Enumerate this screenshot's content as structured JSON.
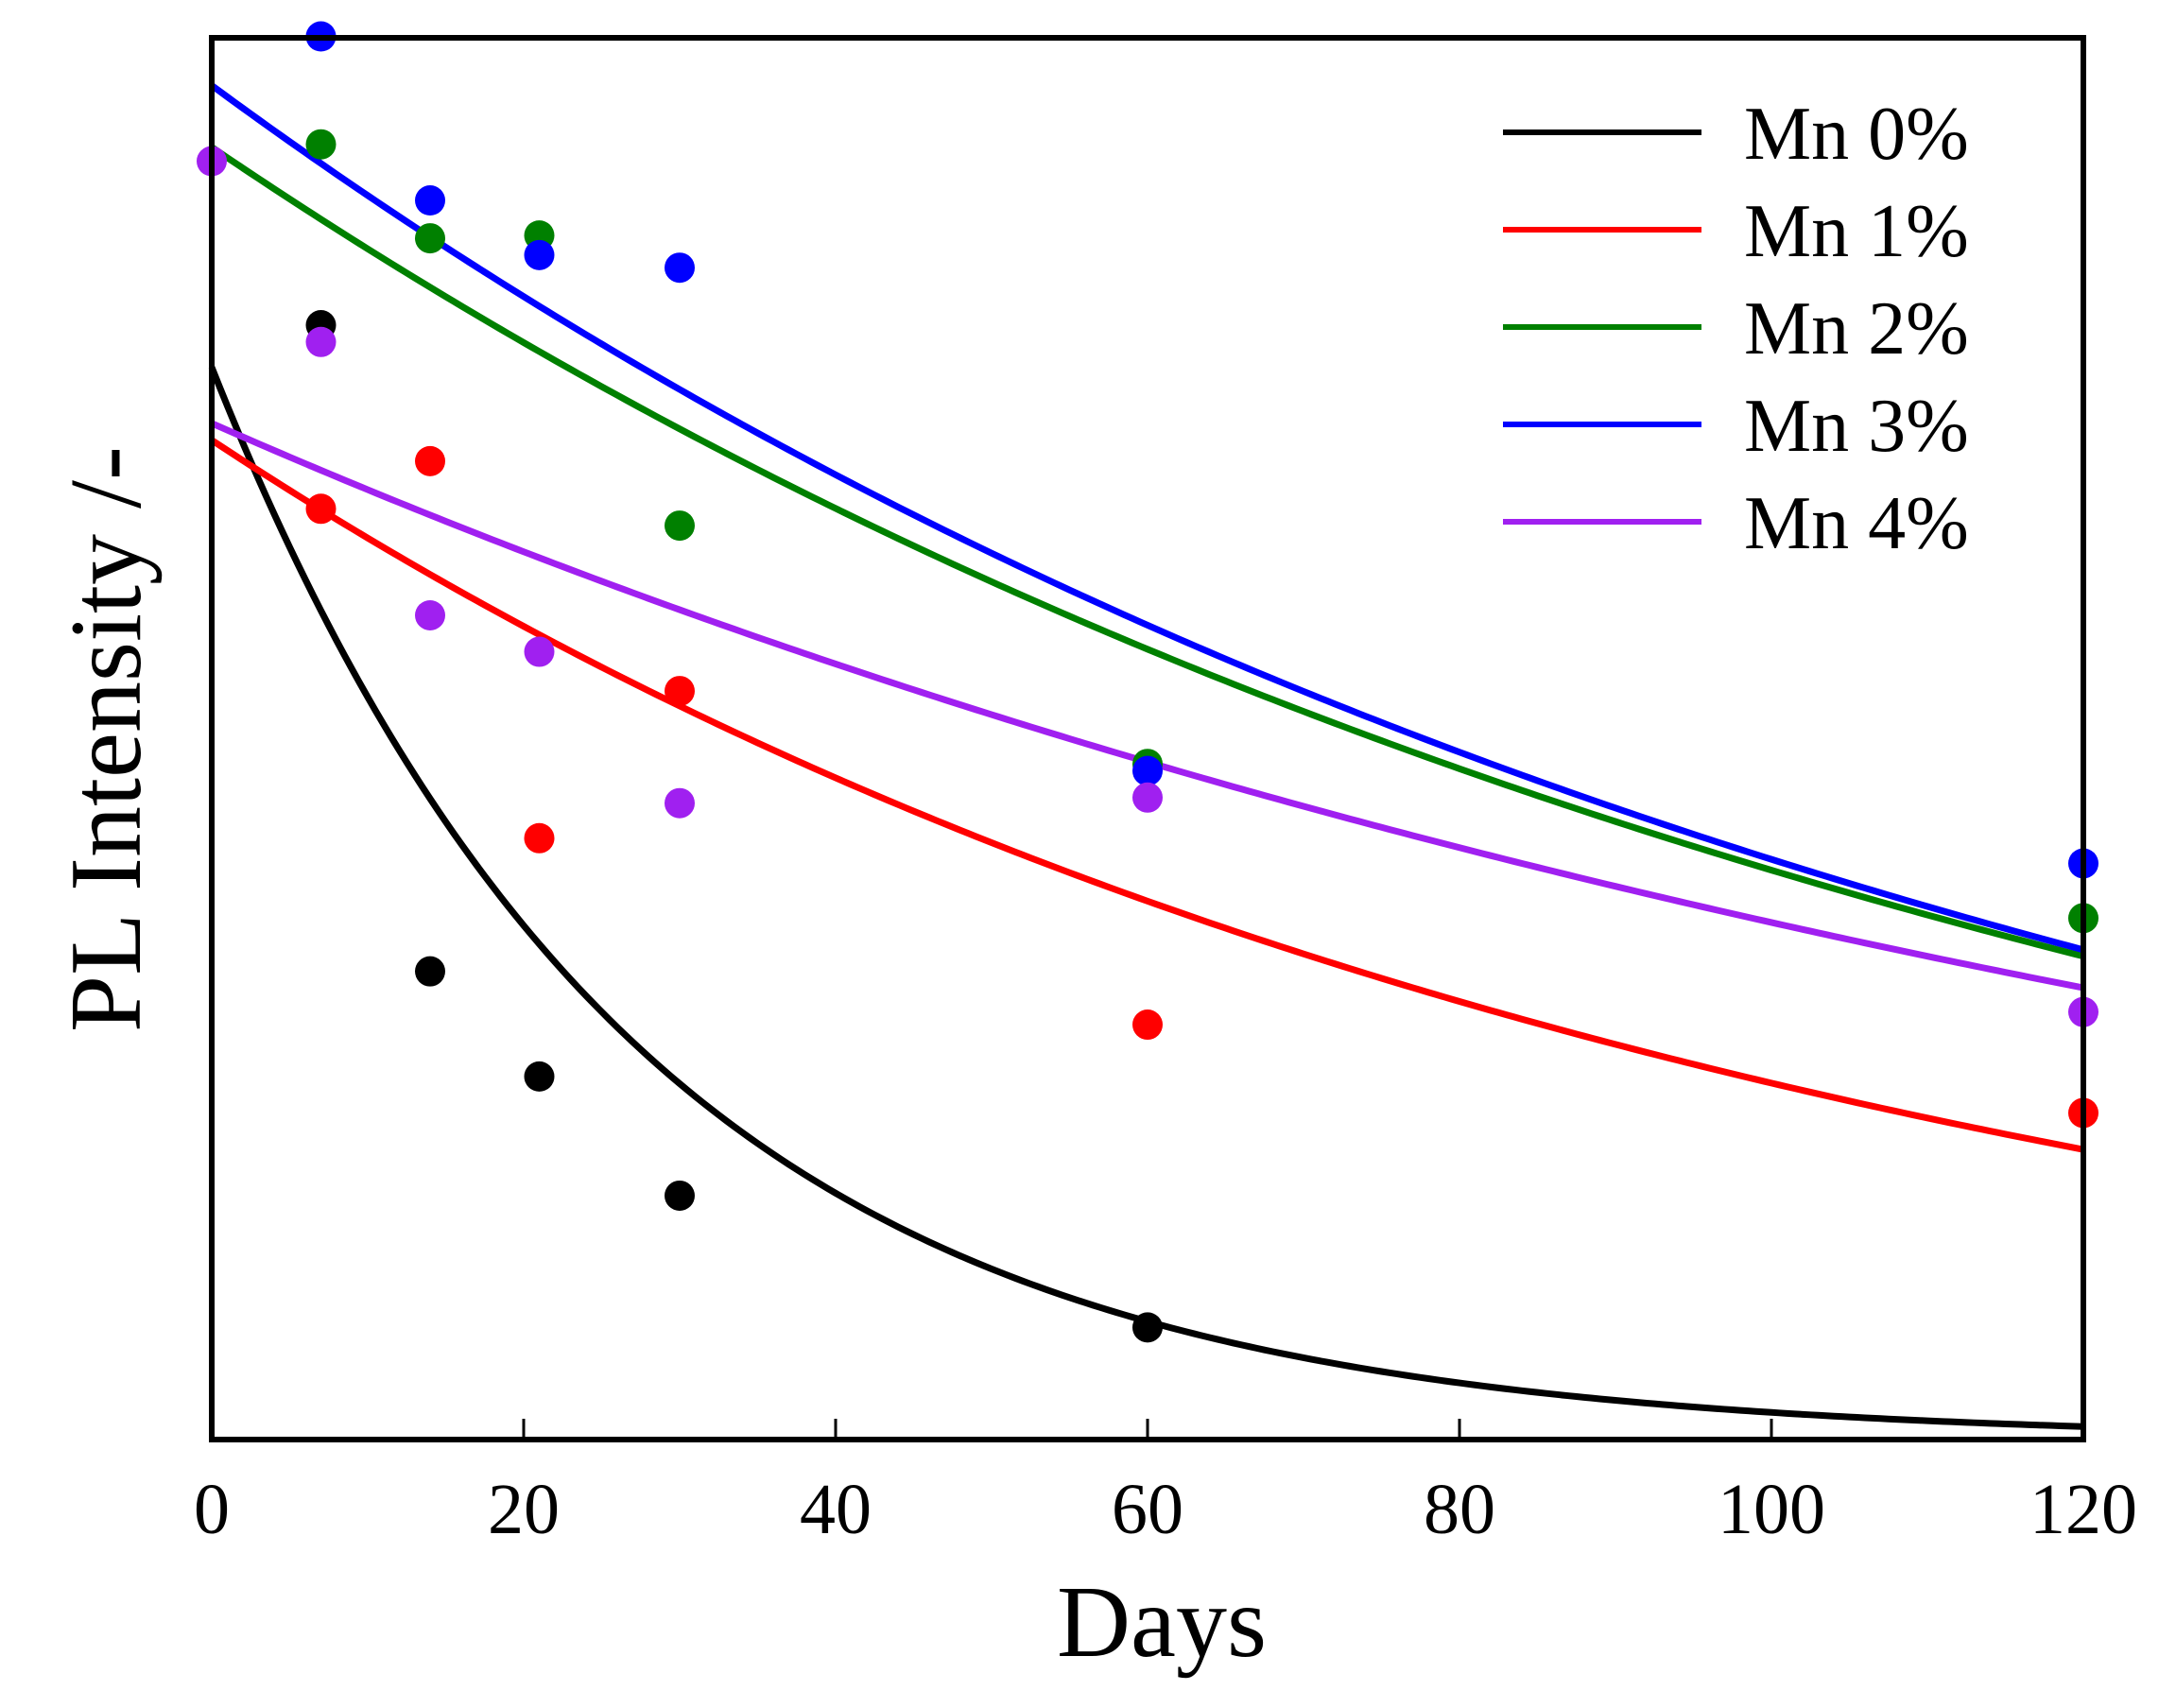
{
  "chart_data": {
    "type": "scatter",
    "xlabel": "Days",
    "ylabel": "PL Intensity /-",
    "xlim": [
      0,
      120
    ],
    "ylim": [
      0,
      1
    ],
    "x_ticks": [
      "0",
      "20",
      "40",
      "60",
      "80",
      "100",
      "120"
    ],
    "y_ticks": [],
    "grid": false,
    "legend_position": "top-right",
    "series": [
      {
        "name": "Mn 0%",
        "color": "#000000",
        "points": [
          [
            7,
            0.795
          ],
          [
            14,
            0.334
          ],
          [
            21,
            0.259
          ],
          [
            30,
            0.174
          ],
          [
            60,
            0.08
          ]
        ],
        "fit": {
          "model": "exponential",
          "a": 0.765,
          "tau": 27.2,
          "c": 0.0
        }
      },
      {
        "name": "Mn 1%",
        "color": "#ff0000",
        "points": [
          [
            7,
            0.664
          ],
          [
            14,
            0.698
          ],
          [
            21,
            0.429
          ],
          [
            30,
            0.534
          ],
          [
            60,
            0.296
          ],
          [
            120,
            0.233
          ]
        ],
        "fit": {
          "model": "exponential",
          "a": 0.713,
          "tau": 97.0,
          "c": 0.0
        }
      },
      {
        "name": "Mn 2%",
        "color": "#008000",
        "points": [
          [
            7,
            0.924
          ],
          [
            14,
            0.857
          ],
          [
            21,
            0.859
          ],
          [
            30,
            0.652
          ],
          [
            60,
            0.482
          ],
          [
            120,
            0.372
          ]
        ],
        "fit": {
          "model": "exponential",
          "a": 0.922,
          "tau": 122.0,
          "c": 0.0
        }
      },
      {
        "name": "Mn 3%",
        "color": "#0000ff",
        "points": [
          [
            7,
            1.001
          ],
          [
            14,
            0.884
          ],
          [
            21,
            0.845
          ],
          [
            30,
            0.836
          ],
          [
            60,
            0.477
          ],
          [
            120,
            0.411
          ]
        ],
        "fit": {
          "model": "exponential",
          "a": 0.966,
          "tau": 118.0,
          "c": 0.0
        }
      },
      {
        "name": "Mn 4%",
        "color": "#a020f0",
        "points": [
          [
            0,
            0.912
          ],
          [
            7,
            0.783
          ],
          [
            14,
            0.588
          ],
          [
            21,
            0.562
          ],
          [
            30,
            0.454
          ],
          [
            60,
            0.458
          ],
          [
            120,
            0.305
          ]
        ],
        "fit": {
          "model": "exponential",
          "a": 0.725,
          "tau": 148.0,
          "c": 0.0
        }
      }
    ]
  }
}
